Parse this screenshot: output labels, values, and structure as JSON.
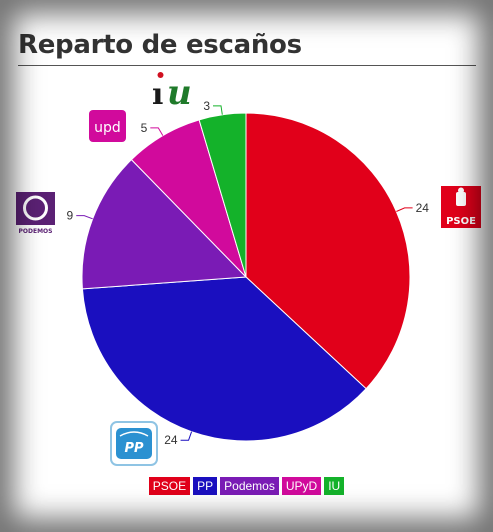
{
  "title": "Reparto de escaños",
  "chart_data": {
    "type": "pie",
    "slices": [
      {
        "label": "PSOE",
        "value": 24,
        "color": "#e1001a"
      },
      {
        "label": "PP",
        "value": 24,
        "color": "#1a0fbf"
      },
      {
        "label": "Podemos",
        "value": 9,
        "color": "#7a1bb5"
      },
      {
        "label": "UPyD",
        "value": 5,
        "color": "#d10a9c"
      },
      {
        "label": "IU",
        "value": 3,
        "color": "#14b22a"
      }
    ],
    "value_labels": [
      "24",
      "24",
      "9",
      "5",
      "3"
    ],
    "legend": [
      "PSOE",
      "PP",
      "Podemos",
      "UPyD",
      "IU"
    ],
    "legend_position": "bottom-center",
    "start": "top, clockwise"
  },
  "logos": {
    "psoe": "PSOE",
    "pp": "PP",
    "podemos": "PODEMOS",
    "upyd": "upd",
    "iu": "iu"
  }
}
